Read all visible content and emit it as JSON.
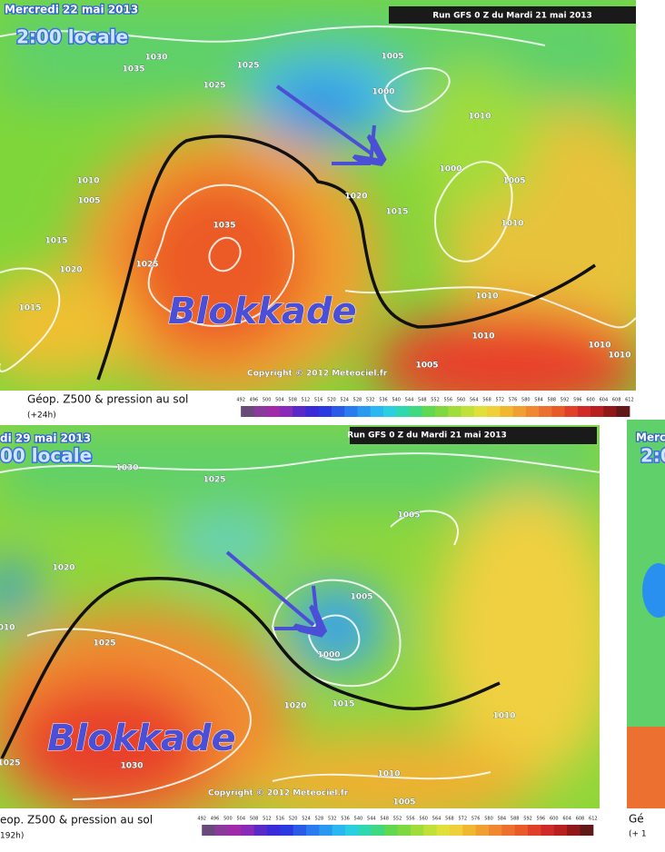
{
  "panels": [
    {
      "date": "Mercredi 22 mai 2013",
      "time": "2:00 locale",
      "run": "Run GFS 0 Z du Mardi 21 mai 2013",
      "annotation": "Blokkade",
      "copyright": "Copyright © 2012 Meteociel.fr",
      "caption": "Géop. Z500 & pression au sol",
      "lead": "(+24h)",
      "pressure_labels": [
        1030,
        1035,
        1025,
        1025,
        1005,
        1000,
        1010,
        1010,
        1005,
        1000,
        1020,
        1005,
        1015,
        1015,
        1020,
        1035,
        1025,
        1015,
        1010,
        1010,
        1010,
        1010,
        1005,
        1010
      ]
    },
    {
      "date": "di 29 mai 2013",
      "time": "00 locale",
      "run": "Run GFS 0 Z du Mardi 21 mai 2013",
      "annotation": "Blokkade",
      "copyright": "Copyright © 2012 Meteociel.fr",
      "caption": "eop. Z500 & pression au sol",
      "lead": "192h)",
      "pressure_labels": [
        1030,
        1025,
        1020,
        1005,
        1005,
        1010,
        1000,
        1025,
        1020,
        1015,
        1010,
        1030,
        1010,
        1005,
        1025
      ]
    }
  ],
  "scale_labels": [
    492,
    496,
    500,
    504,
    508,
    512,
    516,
    520,
    524,
    528,
    532,
    536,
    540,
    544,
    548,
    552,
    556,
    560,
    564,
    568,
    572,
    576,
    580,
    584,
    588,
    592,
    596,
    600,
    604,
    608,
    612
  ],
  "partial_panel": {
    "date": "Mercr",
    "time": "2:0",
    "caption": "Gé",
    "lead": "(+ 1"
  }
}
